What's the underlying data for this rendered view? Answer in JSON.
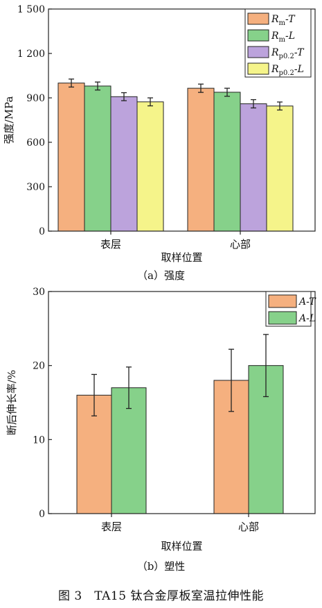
{
  "chart_data": [
    {
      "type": "bar",
      "caption": "（a）强度",
      "xlabel": "取样位置",
      "ylabel": "强度/MPa",
      "ylim": [
        0,
        1500
      ],
      "yticks": [
        0,
        300,
        600,
        900,
        1200,
        1500
      ],
      "ytick_labels": [
        "0",
        "300",
        "600",
        "900",
        "1 200",
        "1 500"
      ],
      "categories": [
        "表层",
        "心部"
      ],
      "legend_position": "top-right",
      "series": [
        {
          "name": "Rm-T",
          "legend": {
            "main": "R",
            "sub": "m",
            "suffix": "-T"
          },
          "color": "#f5b07f",
          "values": [
            1000,
            965
          ],
          "errors": [
            27,
            28
          ]
        },
        {
          "name": "Rm-L",
          "legend": {
            "main": "R",
            "sub": "m",
            "suffix": "-L"
          },
          "color": "#86d18a",
          "values": [
            980,
            938
          ],
          "errors": [
            27,
            27
          ]
        },
        {
          "name": "Rp0.2-T",
          "legend": {
            "main": "R",
            "sub": "p0.2",
            "suffix": "-T"
          },
          "color": "#bca3dc",
          "values": [
            908,
            860
          ],
          "errors": [
            27,
            28
          ]
        },
        {
          "name": "Rp0.2-L",
          "legend": {
            "main": "R",
            "sub": "p0.2",
            "suffix": "-L"
          },
          "color": "#f5f48a",
          "values": [
            873,
            845
          ],
          "errors": [
            27,
            27
          ]
        }
      ]
    },
    {
      "type": "bar",
      "caption": "（b）塑性",
      "xlabel": "取样位置",
      "ylabel": "断后伸长率/%",
      "ylim": [
        0,
        30
      ],
      "yticks": [
        0,
        10,
        20,
        30
      ],
      "ytick_labels": [
        "0",
        "10",
        "20",
        "30"
      ],
      "categories": [
        "表层",
        "心部"
      ],
      "legend_position": "top-right",
      "series": [
        {
          "name": "A-T",
          "legend": {
            "main": "A",
            "sub": "",
            "suffix": "-T"
          },
          "color": "#f5b07f",
          "values": [
            16,
            18
          ],
          "errors": [
            2.8,
            4.2
          ]
        },
        {
          "name": "A-L",
          "legend": {
            "main": "A",
            "sub": "",
            "suffix": "-L"
          },
          "color": "#86d18a",
          "values": [
            17,
            20
          ],
          "errors": [
            2.8,
            4.2
          ]
        }
      ]
    }
  ],
  "figure_caption": "图 3　TA15 钛合金厚板室温拉伸性能"
}
